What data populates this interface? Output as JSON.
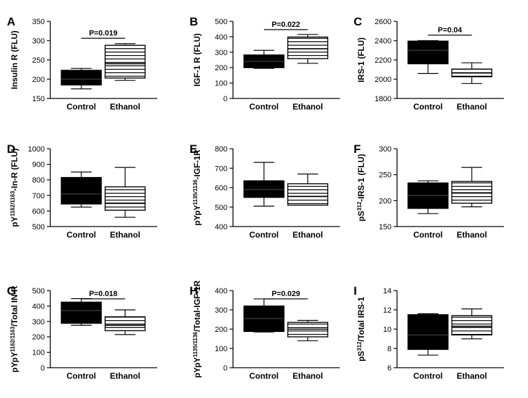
{
  "chart_data": [
    {
      "panel": "A",
      "type": "boxplot",
      "ylabel": "Insulin R (FLU)",
      "ylim": [
        150,
        350
      ],
      "yticks": [
        150,
        200,
        250,
        300,
        350
      ],
      "categories": [
        "Control",
        "Ethanol"
      ],
      "boxes": [
        {
          "name": "Control",
          "min": 175,
          "q1": 185,
          "median": 200,
          "q3": 223,
          "max": 228,
          "fill": "solid"
        },
        {
          "name": "Ethanol",
          "min": 197,
          "q1": 203,
          "median": 240,
          "q3": 288,
          "max": 292,
          "fill": "striped"
        }
      ],
      "significance": "P=0.019"
    },
    {
      "panel": "B",
      "type": "boxplot",
      "ylabel": "IGF-1 R (FLU)",
      "ylim": [
        0,
        500
      ],
      "yticks": [
        0,
        100,
        200,
        300,
        400,
        500
      ],
      "categories": [
        "Control",
        "Ethanol"
      ],
      "boxes": [
        {
          "name": "Control",
          "min": 195,
          "q1": 200,
          "median": 240,
          "q3": 282,
          "max": 312,
          "fill": "solid"
        },
        {
          "name": "Ethanol",
          "min": 228,
          "q1": 258,
          "median": 322,
          "q3": 398,
          "max": 415,
          "fill": "striped"
        }
      ],
      "significance": "P=0.022"
    },
    {
      "panel": "C",
      "type": "boxplot",
      "ylabel": "IRS-1 (FLU)",
      "ylim": [
        1800,
        2600
      ],
      "yticks": [
        1800,
        2000,
        2200,
        2400,
        2600
      ],
      "categories": [
        "Control",
        "Ethanol"
      ],
      "boxes": [
        {
          "name": "Control",
          "min": 2060,
          "q1": 2160,
          "median": 2300,
          "q3": 2395,
          "max": 2400,
          "fill": "solid"
        },
        {
          "name": "Ethanol",
          "min": 1955,
          "q1": 2025,
          "median": 2065,
          "q3": 2105,
          "max": 2170,
          "fill": "striped"
        }
      ],
      "significance": "P=0.04"
    },
    {
      "panel": "D",
      "type": "boxplot",
      "ylabel": "pY1162/1163-In-R (FLU)",
      "ylabel_parts": {
        "pre": "pY",
        "sup": "1162/1163",
        "post": "-In-R (FLU)"
      },
      "ylim": [
        500,
        1000
      ],
      "yticks": [
        500,
        600,
        700,
        800,
        900,
        1000
      ],
      "categories": [
        "Control",
        "Ethanol"
      ],
      "boxes": [
        {
          "name": "Control",
          "min": 625,
          "q1": 645,
          "median": 710,
          "q3": 815,
          "max": 850,
          "fill": "solid"
        },
        {
          "name": "Ethanol",
          "min": 560,
          "q1": 605,
          "median": 650,
          "q3": 755,
          "max": 880,
          "fill": "striped"
        }
      ],
      "significance": ""
    },
    {
      "panel": "E",
      "type": "boxplot",
      "ylabel": "pYpY1135/1136-IGF-1R",
      "ylabel_parts": {
        "pre": "pYpY",
        "sup": "1135/1136",
        "post": "-IGF-1R"
      },
      "ylim": [
        400,
        800
      ],
      "yticks": [
        400,
        500,
        600,
        700,
        800
      ],
      "categories": [
        "Control",
        "Ethanol"
      ],
      "boxes": [
        {
          "name": "Control",
          "min": 505,
          "q1": 550,
          "median": 590,
          "q3": 635,
          "max": 730,
          "fill": "solid"
        },
        {
          "name": "Ethanol",
          "min": 510,
          "q1": 510,
          "median": 555,
          "q3": 620,
          "max": 670,
          "fill": "striped"
        }
      ],
      "significance": ""
    },
    {
      "panel": "F",
      "type": "boxplot",
      "ylabel": "pS312-IRS-1 (FLU)",
      "ylabel_parts": {
        "pre": "pS",
        "sup": "312",
        "post": "-IRS-1 (FLU)"
      },
      "ylim": [
        150,
        300
      ],
      "yticks": [
        150,
        200,
        250,
        300
      ],
      "categories": [
        "Control",
        "Ethanol"
      ],
      "boxes": [
        {
          "name": "Control",
          "min": 175,
          "q1": 185,
          "median": 210,
          "q3": 234,
          "max": 238,
          "fill": "solid"
        },
        {
          "name": "Ethanol",
          "min": 188,
          "q1": 195,
          "median": 215,
          "q3": 237,
          "max": 264,
          "fill": "striped"
        }
      ],
      "significance": ""
    },
    {
      "panel": "G",
      "type": "boxplot",
      "ylabel": "pYpY1162/1163/Total IN-R",
      "ylabel_parts": {
        "pre": "pYpY",
        "sup": "1162/1163",
        "post": "/Total IN-R"
      },
      "ylim": [
        0,
        500
      ],
      "yticks": [
        0,
        100,
        200,
        300,
        400,
        500
      ],
      "categories": [
        "Control",
        "Ethanol"
      ],
      "boxes": [
        {
          "name": "Control",
          "min": 275,
          "q1": 288,
          "median": 370,
          "q3": 425,
          "max": 448,
          "fill": "solid"
        },
        {
          "name": "Ethanol",
          "min": 215,
          "q1": 240,
          "median": 275,
          "q3": 330,
          "max": 375,
          "fill": "striped"
        }
      ],
      "significance": "P=0.018"
    },
    {
      "panel": "H",
      "type": "boxplot",
      "ylabel": "pYpY1135/1136/Total-IGF-1R",
      "ylabel_parts": {
        "pre": "pYpY",
        "sup": "1135/1136",
        "post": "/Total-IGF-1R"
      },
      "ylim": [
        0,
        400
      ],
      "yticks": [
        0,
        100,
        200,
        300,
        400
      ],
      "categories": [
        "Control",
        "Ethanol"
      ],
      "boxes": [
        {
          "name": "Control",
          "min": 185,
          "q1": 188,
          "median": 255,
          "q3": 320,
          "max": 357,
          "fill": "solid"
        },
        {
          "name": "Ethanol",
          "min": 140,
          "q1": 160,
          "median": 200,
          "q3": 235,
          "max": 245,
          "fill": "striped"
        }
      ],
      "significance": "P=0.029"
    },
    {
      "panel": "I",
      "type": "boxplot",
      "ylabel": "pS312/Total IRS-1",
      "ylabel_parts": {
        "pre": "pS",
        "sup": "312",
        "post": "/Total IRS-1"
      },
      "ylim": [
        6,
        14
      ],
      "yticks": [
        6,
        8,
        10,
        12,
        14
      ],
      "categories": [
        "Control",
        "Ethanol"
      ],
      "boxes": [
        {
          "name": "Control",
          "min": 7.3,
          "q1": 7.9,
          "median": 9.4,
          "q3": 11.5,
          "max": 11.6,
          "fill": "solid"
        },
        {
          "name": "Ethanol",
          "min": 9.0,
          "q1": 9.4,
          "median": 10.3,
          "q3": 11.4,
          "max": 12.1,
          "fill": "striped"
        }
      ],
      "significance": ""
    }
  ]
}
